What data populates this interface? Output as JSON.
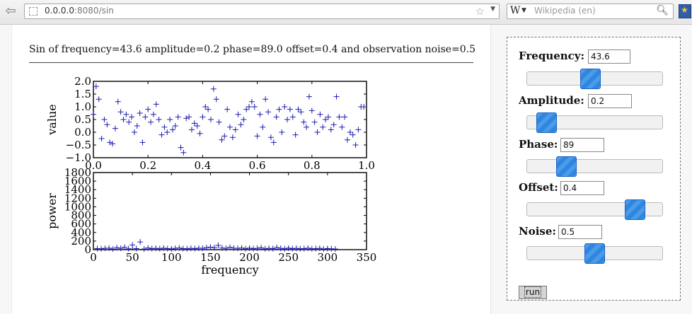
{
  "browser": {
    "url_host": "0.0.0.0",
    "url_rest": ":8080/sin",
    "search_placeholder": "Wikipedia (en)",
    "search_engine_letter": "W"
  },
  "page": {
    "heading": "Sin of frequency=43.6 amplitude=0.2 phase=89.0 offset=0.4 and observation noise=0.5"
  },
  "controls": {
    "frequency": {
      "label": "Frequency:",
      "value": "43.6",
      "level": 0.46
    },
    "amplitude": {
      "label": "Amplitude:",
      "value": "0.2",
      "level": 0.08
    },
    "phase": {
      "label": "Phase:",
      "value": "89",
      "level": 0.25
    },
    "offset": {
      "label": "Offset:",
      "value": "0.4",
      "level": 0.85
    },
    "noise": {
      "label": "Noise:",
      "value": "0.5",
      "level": 0.5
    },
    "run_label": "run"
  },
  "chart_data": [
    {
      "type": "scatter",
      "title": "",
      "xlabel": "",
      "ylabel": "value",
      "xlim": [
        0.0,
        1.0
      ],
      "ylim": [
        -1.0,
        2.0
      ],
      "xticks": [
        "0.0",
        "0.2",
        "0.4",
        "0.6",
        "0.8",
        "1.0"
      ],
      "yticks": [
        "−1.0",
        "−0.5",
        "0.0",
        "0.5",
        "1.0",
        "1.5",
        "2.0"
      ],
      "marker": "+",
      "color": "#1a1ab0",
      "x": [
        0.0,
        0.01,
        0.02,
        0.03,
        0.04,
        0.05,
        0.06,
        0.07,
        0.08,
        0.09,
        0.1,
        0.11,
        0.12,
        0.13,
        0.14,
        0.15,
        0.16,
        0.17,
        0.18,
        0.19,
        0.2,
        0.21,
        0.22,
        0.23,
        0.24,
        0.25,
        0.26,
        0.27,
        0.28,
        0.29,
        0.3,
        0.31,
        0.32,
        0.33,
        0.34,
        0.35,
        0.36,
        0.37,
        0.38,
        0.39,
        0.4,
        0.41,
        0.42,
        0.43,
        0.44,
        0.45,
        0.46,
        0.47,
        0.48,
        0.49,
        0.5,
        0.51,
        0.52,
        0.53,
        0.54,
        0.55,
        0.56,
        0.57,
        0.58,
        0.59,
        0.6,
        0.61,
        0.62,
        0.63,
        0.64,
        0.65,
        0.66,
        0.67,
        0.68,
        0.69,
        0.7,
        0.71,
        0.72,
        0.73,
        0.74,
        0.75,
        0.76,
        0.77,
        0.78,
        0.79,
        0.8,
        0.81,
        0.82,
        0.83,
        0.84,
        0.85,
        0.86,
        0.87,
        0.88,
        0.89,
        0.9,
        0.91,
        0.92,
        0.93,
        0.94,
        0.95,
        0.96,
        0.97,
        0.98,
        0.99
      ],
      "y": [
        0.7,
        1.8,
        1.3,
        -0.25,
        0.5,
        0.3,
        -0.4,
        -0.45,
        0.15,
        1.2,
        0.8,
        0.5,
        0.7,
        0.4,
        0.6,
        0.0,
        0.25,
        0.75,
        -0.4,
        0.6,
        0.9,
        0.4,
        0.7,
        1.1,
        0.5,
        -0.1,
        0.2,
        0.0,
        0.5,
        0.1,
        0.25,
        0.6,
        -0.6,
        -0.8,
        0.55,
        0.6,
        0.1,
        0.35,
        0.25,
        -0.05,
        0.6,
        1.0,
        0.9,
        0.5,
        1.7,
        1.3,
        0.4,
        -0.3,
        -0.15,
        0.9,
        0.2,
        -0.2,
        0.1,
        0.7,
        0.3,
        0.5,
        0.9,
        1.0,
        1.2,
        1.0,
        -0.15,
        0.7,
        0.2,
        1.3,
        0.8,
        -0.2,
        -0.4,
        0.6,
        0.9,
        0.0,
        1.0,
        0.5,
        0.9,
        0.6,
        -0.1,
        0.9,
        0.8,
        0.4,
        0.2,
        1.4,
        0.85,
        0.4,
        0.0,
        0.7,
        0.2,
        0.5,
        0.6,
        0.1,
        0.3,
        1.4,
        0.6,
        0.2,
        0.6,
        -0.3,
        0.0,
        -0.1,
        -0.5,
        0.1,
        1.0,
        1.0
      ]
    },
    {
      "type": "scatter",
      "title": "",
      "xlabel": "frequency",
      "ylabel": "power",
      "xlim": [
        0,
        350
      ],
      "ylim": [
        0,
        1800
      ],
      "xticks": [
        "0",
        "50",
        "100",
        "150",
        "200",
        "250",
        "300",
        "350"
      ],
      "yticks": [
        "0",
        "200",
        "400",
        "600",
        "800",
        "1000",
        "1200",
        "1400",
        "1600",
        "1800"
      ],
      "marker": "+",
      "color": "#1a1ab0",
      "x": [
        5,
        10,
        15,
        20,
        25,
        30,
        35,
        40,
        45,
        50,
        55,
        60,
        65,
        70,
        75,
        80,
        85,
        90,
        95,
        100,
        105,
        110,
        115,
        120,
        125,
        130,
        135,
        140,
        145,
        150,
        155,
        160,
        165,
        170,
        175,
        180,
        185,
        190,
        195,
        200,
        205,
        210,
        215,
        220,
        225,
        230,
        235,
        240,
        245,
        250,
        255,
        260,
        265,
        270,
        275,
        280,
        285,
        290,
        295,
        300,
        305,
        310
      ],
      "y": [
        25,
        20,
        30,
        35,
        15,
        45,
        30,
        55,
        20,
        110,
        25,
        180,
        15,
        40,
        25,
        30,
        20,
        35,
        25,
        15,
        30,
        40,
        25,
        20,
        30,
        25,
        35,
        30,
        45,
        60,
        45,
        100,
        40,
        30,
        55,
        35,
        30,
        40,
        20,
        35,
        25,
        30,
        45,
        20,
        30,
        25,
        50,
        30,
        20,
        35,
        25,
        30,
        20,
        25,
        35,
        20,
        25,
        30,
        15,
        25,
        20,
        15
      ]
    }
  ]
}
